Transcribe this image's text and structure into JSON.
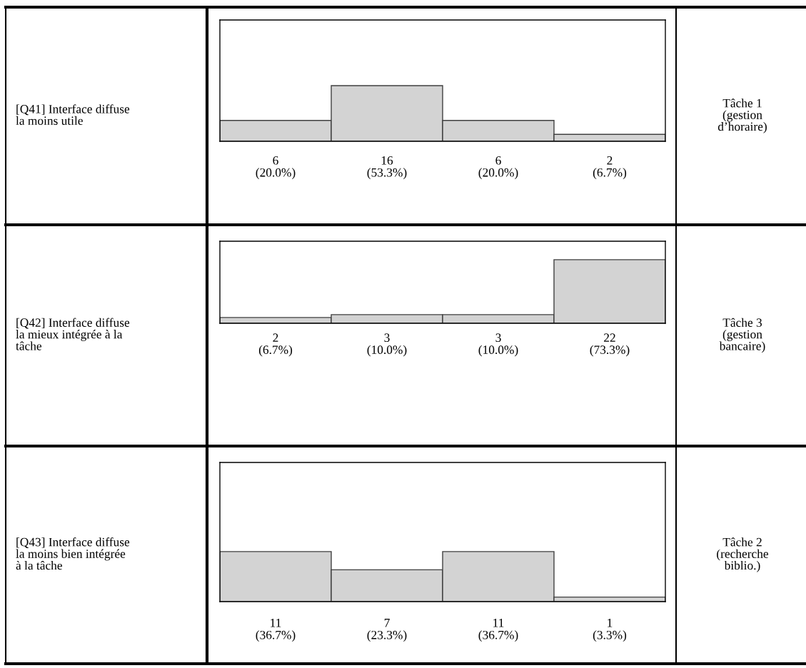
{
  "chart_data": [
    {
      "type": "bar",
      "categories": [
        null,
        null,
        null,
        null
      ],
      "color": "#d3d3d3",
      "values": [
        6,
        16,
        6,
        2
      ],
      "value_labels": [
        "6\n(20.0%)",
        "16\n(53.3%)",
        "6\n(20.0%)",
        "2\n(6.7%)"
      ],
      "annotations": [
        "[Q41] Interface diffuse\nla moins utile",
        "Tâche 1\n(gestion\nd’horaire)"
      ]
    },
    {
      "type": "bar",
      "categories": [
        null,
        null,
        null,
        null
      ],
      "color": "#d3d3d3",
      "values": [
        2,
        3,
        3,
        22
      ],
      "value_labels": [
        "2\n(6.7%)",
        "3\n(10.0%)",
        "3\n(10.0%)",
        "22\n(73.3%)"
      ],
      "annotations": [
        "[Q42] Interface diffuse\nla mieux intégrée à la\ntâche",
        "Tâche 3\n(gestion\nbancaire)"
      ]
    },
    {
      "type": "bar",
      "categories": [
        null,
        null,
        null,
        null
      ],
      "color": "#d3d3d3",
      "values": [
        11,
        7,
        11,
        1
      ],
      "value_labels": [
        "11\n(36.7%)",
        "7\n(23.3%)",
        "11\n(36.7%)",
        "1\n(3.3%)"
      ],
      "annotations": [
        "[Q43] Interface diffuse\nla moins bien intégrée\nà la tâche",
        "Tâche 2\n(recherche\nbiblio.)"
      ]
    }
  ]
}
